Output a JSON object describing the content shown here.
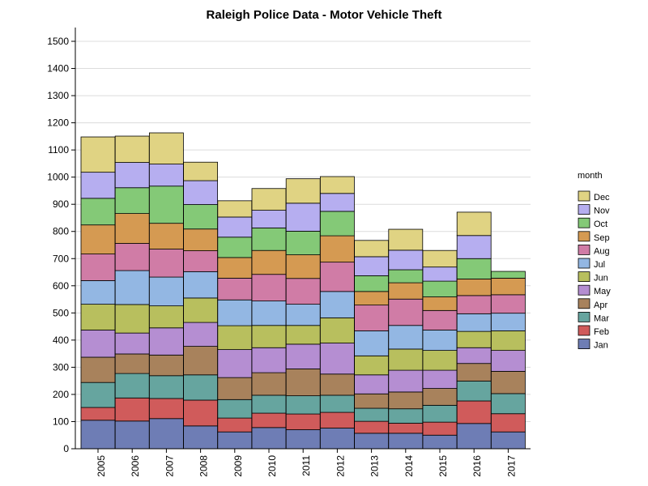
{
  "chart_data": {
    "type": "bar",
    "stacked": true,
    "title": "Raleigh Police Data - Motor Vehicle Theft",
    "xlabel": "",
    "ylabel": "",
    "ylim": [
      0,
      1500
    ],
    "yticks": [
      0,
      100,
      200,
      300,
      400,
      500,
      600,
      700,
      800,
      900,
      1000,
      1100,
      1200,
      1300,
      1400,
      1500
    ],
    "grid": true,
    "legend_title": "month",
    "legend_position": "right",
    "categories": [
      "2005",
      "2006",
      "2007",
      "2008",
      "2009",
      "2010",
      "2011",
      "2012",
      "2013",
      "2014",
      "2015",
      "2016",
      "2017"
    ],
    "series": [
      {
        "name": "Jan",
        "color": "#6e7db5",
        "values": [
          105,
          102,
          111,
          84,
          62,
          78,
          70,
          76,
          57,
          57,
          50,
          93,
          62
        ]
      },
      {
        "name": "Feb",
        "color": "#d05b5b",
        "values": [
          47,
          85,
          74,
          95,
          51,
          53,
          58,
          58,
          44,
          37,
          48,
          83,
          67
        ]
      },
      {
        "name": "Mar",
        "color": "#66a59f",
        "values": [
          92,
          90,
          84,
          93,
          68,
          66,
          67,
          63,
          48,
          53,
          62,
          73,
          74
        ]
      },
      {
        "name": "Apr",
        "color": "#a8825c",
        "values": [
          93,
          72,
          76,
          105,
          81,
          83,
          99,
          78,
          53,
          62,
          62,
          65,
          82
        ]
      },
      {
        "name": "May",
        "color": "#b58ed2",
        "values": [
          100,
          77,
          100,
          88,
          103,
          92,
          91,
          114,
          70,
          80,
          67,
          58,
          77
        ]
      },
      {
        "name": "Jun",
        "color": "#b8bf5e",
        "values": [
          95,
          105,
          81,
          90,
          88,
          82,
          69,
          93,
          70,
          78,
          73,
          60,
          72
        ]
      },
      {
        "name": "Jul",
        "color": "#93b7e3",
        "values": [
          87,
          125,
          106,
          97,
          95,
          90,
          78,
          97,
          92,
          87,
          75,
          65,
          65
        ]
      },
      {
        "name": "Aug",
        "color": "#d07ca6",
        "values": [
          98,
          100,
          103,
          77,
          80,
          98,
          95,
          108,
          95,
          97,
          72,
          67,
          68
        ]
      },
      {
        "name": "Sep",
        "color": "#d59a52",
        "values": [
          107,
          110,
          95,
          80,
          76,
          88,
          87,
          97,
          50,
          60,
          50,
          61,
          61
        ]
      },
      {
        "name": "Oct",
        "color": "#84c977",
        "values": [
          98,
          95,
          137,
          90,
          75,
          83,
          87,
          90,
          58,
          48,
          58,
          75,
          25
        ]
      },
      {
        "name": "Nov",
        "color": "#b6aef0",
        "values": [
          96,
          93,
          81,
          88,
          74,
          65,
          103,
          66,
          70,
          72,
          52,
          85,
          0
        ]
      },
      {
        "name": "Dec",
        "color": "#e0d383",
        "values": [
          130,
          97,
          115,
          68,
          60,
          80,
          90,
          62,
          60,
          77,
          61,
          86,
          0
        ]
      }
    ]
  }
}
